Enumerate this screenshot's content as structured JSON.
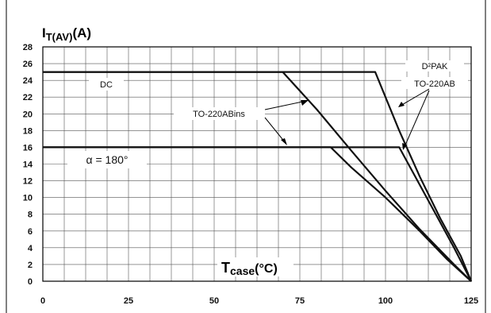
{
  "chart_data": {
    "type": "line",
    "title": "",
    "ylabel_main": "I",
    "ylabel_sub": "T(AV)",
    "ylabel_unit": "(A)",
    "xlabel_main": "T",
    "xlabel_sub": "case",
    "xlabel_unit": "(°C)",
    "xlim": [
      0,
      125
    ],
    "ylim": [
      0,
      28
    ],
    "x_ticks": [
      0,
      25,
      50,
      75,
      100,
      125
    ],
    "y_ticks": [
      0,
      2,
      4,
      6,
      8,
      10,
      12,
      14,
      16,
      18,
      20,
      22,
      24,
      26,
      28
    ],
    "grid": true,
    "series": [
      {
        "points": [
          [
            0,
            25
          ],
          [
            70,
            25
          ],
          [
            80,
            20.5
          ],
          [
            90,
            15.6
          ],
          [
            100,
            10.8
          ],
          [
            110,
            6.2
          ],
          [
            120,
            2
          ],
          [
            125,
            0
          ]
        ]
      },
      {
        "points": [
          [
            0,
            25
          ],
          [
            97,
            25
          ],
          [
            104,
            18
          ],
          [
            110,
            12.5
          ],
          [
            116,
            7.5
          ],
          [
            122,
            3
          ],
          [
            125,
            0
          ]
        ]
      },
      {
        "points": [
          [
            0,
            16
          ],
          [
            84,
            16
          ],
          [
            90,
            13.6
          ],
          [
            100,
            10
          ],
          [
            110,
            6
          ],
          [
            118,
            2.6
          ],
          [
            125,
            0
          ]
        ]
      },
      {
        "points": [
          [
            0,
            16
          ],
          [
            104,
            16
          ],
          [
            108,
            13
          ],
          [
            114,
            8.5
          ],
          [
            120,
            4
          ],
          [
            125,
            0
          ]
        ]
      }
    ],
    "annotations": [
      "DC",
      "D²PAK",
      "TO-220AB",
      "TO-220ABins",
      "α = 180°"
    ]
  }
}
